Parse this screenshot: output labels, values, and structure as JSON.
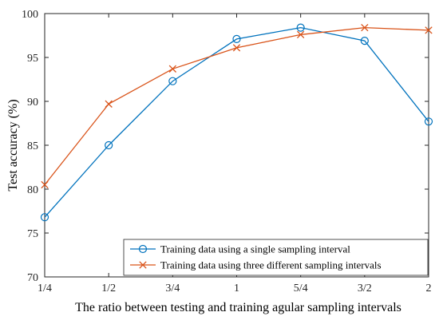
{
  "chart_data": {
    "type": "line",
    "title": "",
    "xlabel": "The ratio between testing and training agular sampling intervals",
    "ylabel": "Test accuracy (%)",
    "categories": [
      "1/4",
      "1/2",
      "3/4",
      "1",
      "5/4",
      "3/2",
      "2"
    ],
    "ylim": [
      70,
      100
    ],
    "yticks": [
      70,
      75,
      80,
      85,
      90,
      95,
      100
    ],
    "grid": false,
    "legend_position": "bottom-right",
    "series": [
      {
        "name": "Training data using a single sampling interval",
        "marker": "circle",
        "color": "#0072BD",
        "values": [
          76.8,
          85.0,
          92.3,
          97.1,
          98.4,
          96.9,
          87.7
        ]
      },
      {
        "name": "Training data using three different sampling intervals",
        "marker": "x",
        "color": "#D95319",
        "values": [
          80.5,
          89.7,
          93.7,
          96.1,
          97.6,
          98.4,
          98.1
        ]
      }
    ]
  }
}
